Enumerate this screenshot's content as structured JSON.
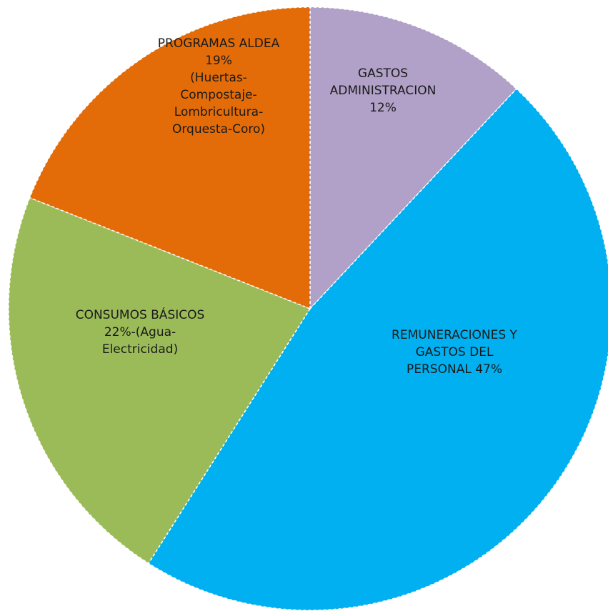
{
  "chart_data": {
    "type": "pie",
    "title": "",
    "legend": "none",
    "start_angle_deg": 0,
    "direction": "clockwise",
    "slices": [
      {
        "name": "GASTOS ADMINISTRACION",
        "value": 12,
        "color": "#B1A0C7",
        "label_lines": [
          "GASTOS",
          "ADMINISTRACION",
          "12%"
        ]
      },
      {
        "name": "REMUNERACIONES Y GASTOS DEL PERSONAL",
        "value": 47,
        "color": "#00B0F0",
        "label_lines": [
          "REMUNERACIONES Y",
          "GASTOS DEL",
          "PERSONAL  47%"
        ]
      },
      {
        "name": "CONSUMOS BÁSICOS",
        "value": 22,
        "color": "#9BBB59",
        "label_lines": [
          "CONSUMOS BÁSICOS",
          "22%-(Agua-",
          "Electricidad)"
        ]
      },
      {
        "name": "PROGRAMAS ALDEA",
        "value": 19,
        "color": "#E36C09",
        "label_lines": [
          "PROGRAMAS ALDEA",
          "19%",
          "(Huertas-",
          "Compostaje-",
          "Lombricultura-",
          "Orquesta-Coro)"
        ]
      }
    ]
  }
}
